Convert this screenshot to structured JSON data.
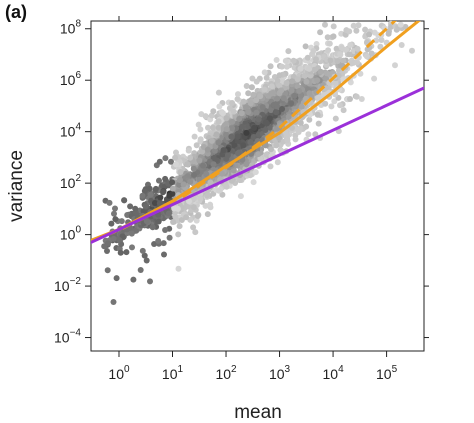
{
  "panel_label": "(a)",
  "chart_data": {
    "type": "scatter",
    "style": "hexbin density (grayscale, darker = more points)",
    "xlabel": "mean",
    "ylabel": "variance",
    "x_scale": "log10",
    "y_scale": "log10",
    "xlim": [
      0.3,
      500000
    ],
    "ylim": [
      3e-05,
      200000000
    ],
    "x_ticks": [
      {
        "base": "10",
        "exp": "0",
        "value": 1
      },
      {
        "base": "10",
        "exp": "1",
        "value": 10
      },
      {
        "base": "10",
        "exp": "2",
        "value": 100
      },
      {
        "base": "10",
        "exp": "3",
        "value": 1000
      },
      {
        "base": "10",
        "exp": "4",
        "value": 10000
      },
      {
        "base": "10",
        "exp": "5",
        "value": 100000
      }
    ],
    "y_ticks": [
      {
        "base": "10",
        "exp": "−4",
        "value": 0.0001
      },
      {
        "base": "10",
        "exp": "−2",
        "value": 0.01
      },
      {
        "base": "10",
        "exp": "0",
        "value": 1
      },
      {
        "base": "10",
        "exp": "2",
        "value": 100
      },
      {
        "base": "10",
        "exp": "4",
        "value": 10000
      },
      {
        "base": "10",
        "exp": "6",
        "value": 1000000
      },
      {
        "base": "10",
        "exp": "8",
        "value": 100000000
      }
    ],
    "grid": false,
    "legend": "none",
    "lines": [
      {
        "style": "solid",
        "color": "#f0a020",
        "points": [
          [
            0.3,
            0.6
          ],
          [
            1,
            1.6
          ],
          [
            10,
            20
          ],
          [
            100,
            460
          ],
          [
            1000,
            9000
          ],
          [
            10000,
            350000
          ],
          [
            100000,
            20000000
          ],
          [
            500000,
            300000000
          ]
        ]
      },
      {
        "style": "dashed",
        "color": "#f0a020",
        "points": [
          [
            0.3,
            0.55
          ],
          [
            1,
            1.5
          ],
          [
            10,
            16
          ],
          [
            100,
            400
          ],
          [
            1000,
            14000
          ],
          [
            10000,
            1200000
          ],
          [
            100000,
            100000000
          ],
          [
            200000,
            400000000
          ]
        ]
      },
      {
        "style": "solid",
        "color": "#9b30d9",
        "points": [
          [
            0.3,
            0.5
          ],
          [
            500000,
            500000
          ]
        ]
      }
    ],
    "point_color_dark": "#222222",
    "point_color_light": "#d8d8d8"
  }
}
